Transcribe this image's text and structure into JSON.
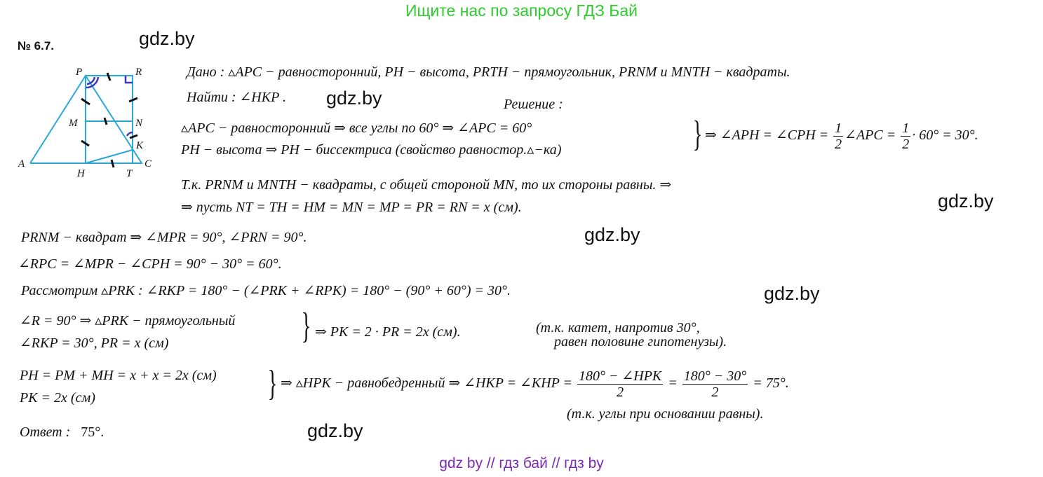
{
  "header": {
    "banner": "Ищите нас по запросу ГДЗ Бай",
    "problem_number": "№ 6.7."
  },
  "watermark": "gdz.by",
  "figure": {
    "labels": {
      "P": "P",
      "R": "R",
      "M": "M",
      "N": "N",
      "K": "K",
      "A": "A",
      "H": "H",
      "T": "T",
      "C": "C"
    },
    "line_color": "#29a8d8",
    "angle_color": "#3b3bb8"
  },
  "given": {
    "line1": "Дано :   ▵APC − равносторонний,   PH − высота,   PRTH − прямоугольник,   PRNM   и   MNTH − квадраты.",
    "line2": "Найти :  ∠HKP ."
  },
  "solution_title": "Решение :",
  "system1": {
    "row1": "▵APC − равносторонний  ⇒  все  углы  по  60°  ⇒  ∠APC = 60°",
    "row2": "PH − высота  ⇒  PH − биссектриса  (свойство  равностор.▵−ка)",
    "result_a": "⇒  ∠APH = ∠CPH =",
    "frac1_num": "1",
    "frac1_den": "2",
    "result_b": "∠APC =",
    "frac2_num": "1",
    "frac2_den": "2",
    "result_c": "· 60° = 30°."
  },
  "squares": {
    "line1": "Т.к.  PRNM   и   MNTH − квадраты,  с  общей  стороной  MN,  то  их  стороны  равны.  ⇒",
    "line2": "⇒   пусть   NT = TH = HM = MN = MP = PR = RN = x   (см)."
  },
  "steps": {
    "s1": "PRNM − квадрат   ⇒  ∠MPR = 90°,   ∠PRN = 90°.",
    "s2": "∠RPC = ∠MPR − ∠CPH = 90° − 30° = 60°.",
    "s3": "Рассмотрим    ▵PRK :      ∠RKP = 180° − (∠PRK + ∠RPK) = 180° − (90° + 60°) = 30°."
  },
  "system2": {
    "row1": "∠R = 90°   ⇒   ▵PRK − прямоугольный",
    "row2": "∠RKP = 30°,   PR = x   (см)",
    "result": "⇒   PK = 2 · PR = 2x    (см).",
    "note1": "(т.к.   катет,   напротив   30°,",
    "note2": "равен   половине   гипотенузы)."
  },
  "system3": {
    "row1": "PH = PM + MH = x + x = 2x    (см)",
    "row2": "PK = 2x    (см)",
    "result_a": "⇒   ▵HPK − равнобедренный   ⇒   ∠HKP = ∠KHP =",
    "frac1_num": "180° − ∠HPK",
    "frac1_den": "2",
    "eq": "=",
    "frac2_num": "180° − 30°",
    "frac2_den": "2",
    "result_b": "= 75°.",
    "note": "(т.к.   углы   при   основании   равны)."
  },
  "answer": {
    "label": "Ответ :",
    "value": "75°."
  },
  "footer": "gdz by  //  гдз бай  //  гдз by"
}
